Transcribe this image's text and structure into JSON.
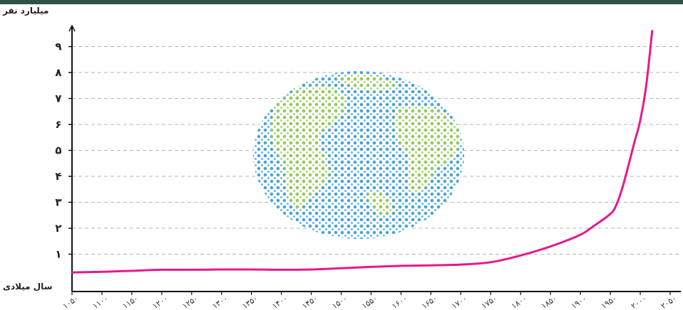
{
  "colors": {
    "line": "#e6198c",
    "axis": "#111111",
    "grid": "#b5b5b5",
    "topbar": "#2f5345",
    "globe_ocean": "#3f9fd6",
    "globe_land": "#9ccc5a"
  },
  "icons": {
    "center_image": "globe-people-icon"
  },
  "chart_data": {
    "type": "line",
    "ylabel": "میلیارد نفر",
    "xlabel": "سال میلادی",
    "ylim": [
      0,
      10
    ],
    "xlim": [
      1050,
      2050
    ],
    "grid": true,
    "y_ticks": [
      {
        "value": 1,
        "label": "۱"
      },
      {
        "value": 2,
        "label": "۲"
      },
      {
        "value": 3,
        "label": "۳"
      },
      {
        "value": 4,
        "label": "۴"
      },
      {
        "value": 5,
        "label": "۵"
      },
      {
        "value": 6,
        "label": "۶"
      },
      {
        "value": 7,
        "label": "۷"
      },
      {
        "value": 8,
        "label": "۸"
      },
      {
        "value": 9,
        "label": "۹"
      }
    ],
    "x_ticks": [
      {
        "value": 1050,
        "label": "۱۰۵۰"
      },
      {
        "value": 1100,
        "label": "۱۱۰۰"
      },
      {
        "value": 1150,
        "label": "۱۱۵۰"
      },
      {
        "value": 1200,
        "label": "۱۲۰۰"
      },
      {
        "value": 1250,
        "label": "۱۲۵۰"
      },
      {
        "value": 1300,
        "label": "۱۳۰۰"
      },
      {
        "value": 1350,
        "label": "۱۳۵۰"
      },
      {
        "value": 1400,
        "label": "۱۴۰۰"
      },
      {
        "value": 1450,
        "label": "۱۴۵۰"
      },
      {
        "value": 1500,
        "label": "۱۵۰۰"
      },
      {
        "value": 1550,
        "label": "۱۵۵۰"
      },
      {
        "value": 1600,
        "label": "۱۶۰۰"
      },
      {
        "value": 1650,
        "label": "۱۶۵۰"
      },
      {
        "value": 1700,
        "label": "۱۷۰۰"
      },
      {
        "value": 1750,
        "label": "۱۷۵۰"
      },
      {
        "value": 1800,
        "label": "۱۸۰۰"
      },
      {
        "value": 1850,
        "label": "۱۸۵۰"
      },
      {
        "value": 1900,
        "label": "۱۹۰۰"
      },
      {
        "value": 1950,
        "label": "۱۹۵۰"
      },
      {
        "value": 2000,
        "label": "۲۰۰۰"
      },
      {
        "value": 2050,
        "label": "۲۰۵۰"
      }
    ],
    "series": [
      {
        "x": [
          1050,
          1100,
          1150,
          1200,
          1250,
          1300,
          1350,
          1400,
          1450,
          1500,
          1550,
          1600,
          1650,
          1700,
          1750,
          1800,
          1850,
          1900,
          1920,
          1950,
          1960,
          1970,
          1980,
          1990,
          2000,
          2010,
          2020
        ],
        "y": [
          0.3,
          0.32,
          0.36,
          0.4,
          0.4,
          0.41,
          0.41,
          0.4,
          0.41,
          0.46,
          0.51,
          0.55,
          0.57,
          0.6,
          0.69,
          0.95,
          1.3,
          1.75,
          2.05,
          2.55,
          2.9,
          3.55,
          4.4,
          5.3,
          6.15,
          7.5,
          9.6
        ]
      }
    ]
  }
}
